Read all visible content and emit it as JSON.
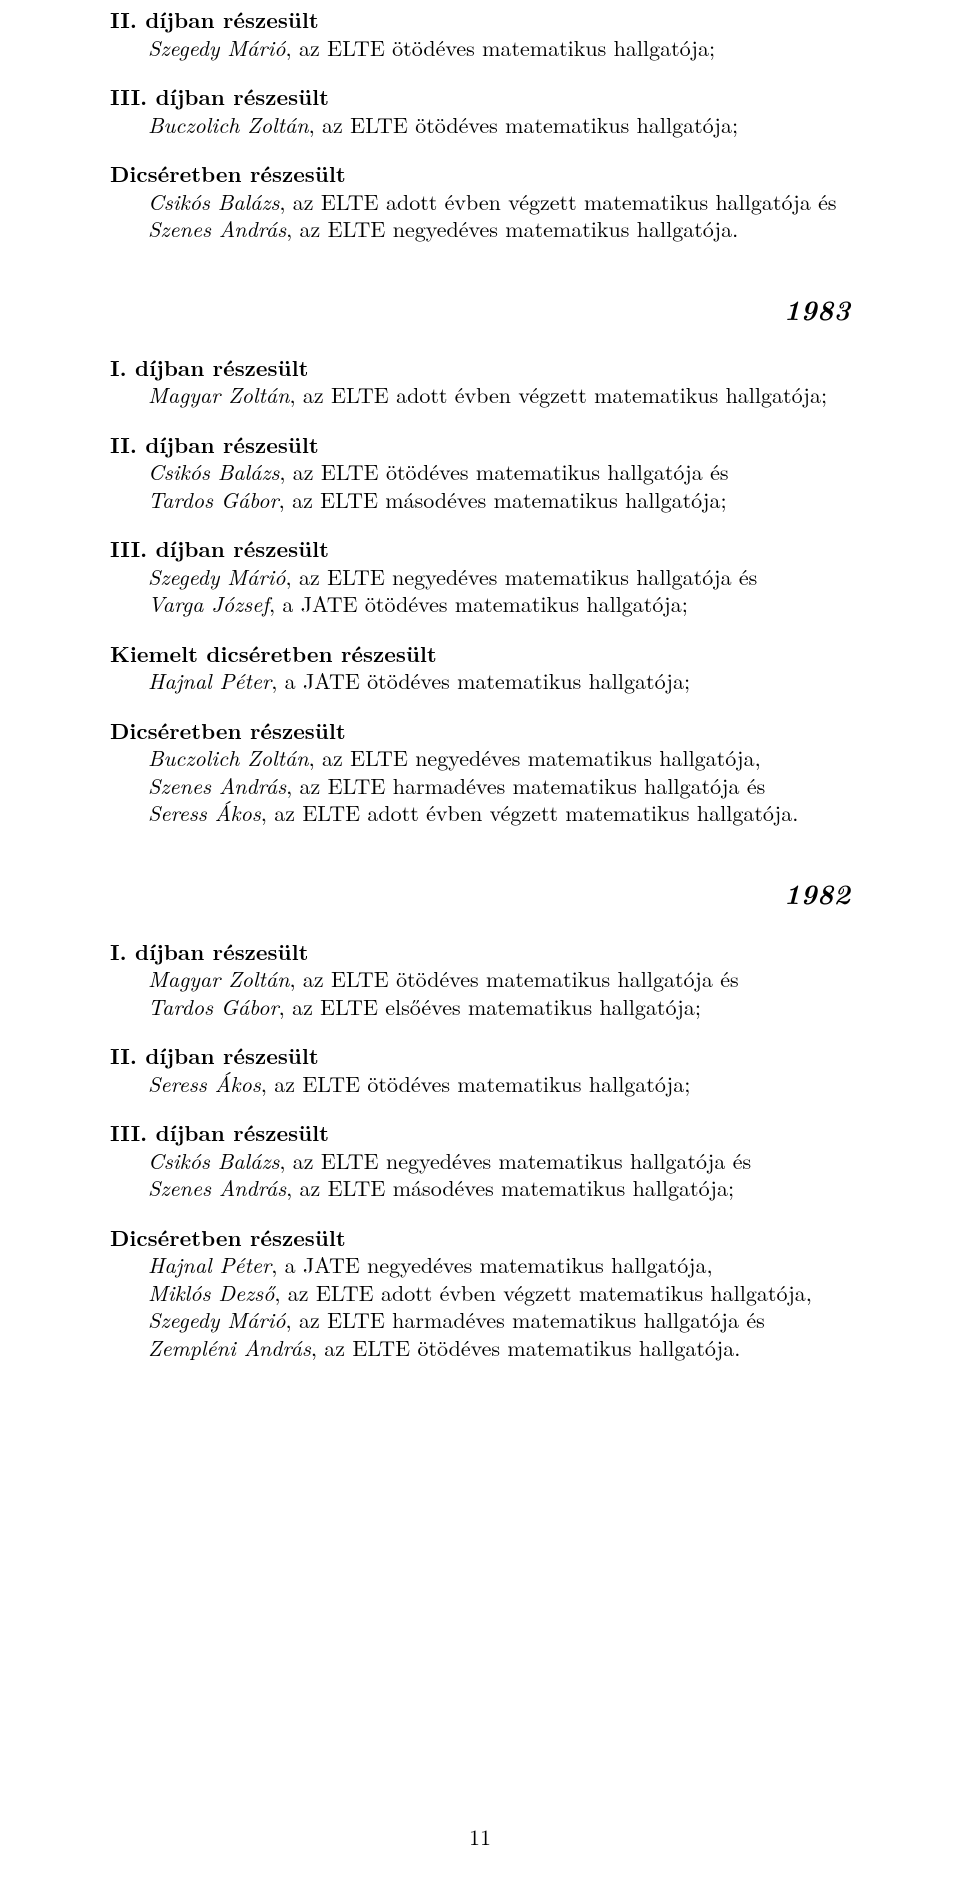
{
  "page_number": "11",
  "blocks": [
    {
      "title": "II. díjban részesült",
      "lines": [
        [
          {
            "t": "Szegedy Márió",
            "i": true
          },
          {
            "t": ", az ELTE ötödéves matematikus hallgatója;",
            "i": false
          }
        ]
      ]
    },
    {
      "title": "III. díjban részesült",
      "lines": [
        [
          {
            "t": "Buczolich Zoltán",
            "i": true
          },
          {
            "t": ", az ELTE ötödéves matematikus hallgatója;",
            "i": false
          }
        ]
      ]
    },
    {
      "title": "Dicséretben részesült",
      "lines": [
        [
          {
            "t": "Csikós Balázs",
            "i": true
          },
          {
            "t": ", az ELTE adott évben végzett matematikus hallgatója és",
            "i": false
          }
        ],
        [
          {
            "t": "Szenes András",
            "i": true
          },
          {
            "t": ", az ELTE negyedéves matematikus hallgatója.",
            "i": false
          }
        ]
      ]
    },
    {
      "year": "1983"
    },
    {
      "title": "I. díjban részesült",
      "lines": [
        [
          {
            "t": "Magyar Zoltán",
            "i": true
          },
          {
            "t": ", az ELTE adott évben végzett matematikus hallgatója;",
            "i": false
          }
        ]
      ]
    },
    {
      "title": "II. díjban részesült",
      "lines": [
        [
          {
            "t": "Csikós Balázs",
            "i": true
          },
          {
            "t": ", az ELTE ötödéves matematikus hallgatója és",
            "i": false
          }
        ],
        [
          {
            "t": "Tardos Gábor",
            "i": true
          },
          {
            "t": ", az ELTE másodéves matematikus hallgatója;",
            "i": false
          }
        ]
      ]
    },
    {
      "title": "III. díjban részesült",
      "lines": [
        [
          {
            "t": "Szegedy Márió",
            "i": true
          },
          {
            "t": ", az ELTE negyedéves matematikus hallgatója és",
            "i": false
          }
        ],
        [
          {
            "t": "Varga József",
            "i": true
          },
          {
            "t": ", a JATE ötödéves matematikus hallgatója;",
            "i": false
          }
        ]
      ]
    },
    {
      "title": "Kiemelt dicséretben részesült",
      "lines": [
        [
          {
            "t": "Hajnal Péter",
            "i": true
          },
          {
            "t": ", a JATE ötödéves matematikus hallgatója;",
            "i": false
          }
        ]
      ]
    },
    {
      "title": "Dicséretben részesült",
      "lines": [
        [
          {
            "t": "Buczolich Zoltán",
            "i": true
          },
          {
            "t": ", az ELTE negyedéves matematikus hallgatója,",
            "i": false
          }
        ],
        [
          {
            "t": "Szenes András",
            "i": true
          },
          {
            "t": ", az ELTE harmadéves matematikus hallgatója és",
            "i": false
          }
        ],
        [
          {
            "t": "Seress Ákos",
            "i": true
          },
          {
            "t": ", az ELTE adott évben végzett matematikus hallgatója.",
            "i": false
          }
        ]
      ]
    },
    {
      "year": "1982"
    },
    {
      "title": "I. díjban részesült",
      "lines": [
        [
          {
            "t": "Magyar Zoltán",
            "i": true
          },
          {
            "t": ", az ELTE ötödéves matematikus hallgatója és",
            "i": false
          }
        ],
        [
          {
            "t": "Tardos Gábor",
            "i": true
          },
          {
            "t": ", az ELTE elsőéves matematikus hallgatója;",
            "i": false
          }
        ]
      ]
    },
    {
      "title": "II. díjban részesült",
      "lines": [
        [
          {
            "t": "Seress Ákos",
            "i": true
          },
          {
            "t": ", az ELTE ötödéves matematikus hallgatója;",
            "i": false
          }
        ]
      ]
    },
    {
      "title": "III. díjban részesült",
      "lines": [
        [
          {
            "t": "Csikós Balázs",
            "i": true
          },
          {
            "t": ", az ELTE negyedéves matematikus hallgatója és",
            "i": false
          }
        ],
        [
          {
            "t": "Szenes András",
            "i": true
          },
          {
            "t": ", az ELTE másodéves matematikus hallgatója;",
            "i": false
          }
        ]
      ]
    },
    {
      "title": "Dicséretben részesült",
      "lines": [
        [
          {
            "t": "Hajnal Péter",
            "i": true
          },
          {
            "t": ", a JATE negyedéves matematikus hallgatója,",
            "i": false
          }
        ],
        [
          {
            "t": "Miklós Dezső",
            "i": true
          },
          {
            "t": ", az ELTE adott évben végzett matematikus hallgatója,",
            "i": false
          }
        ],
        [
          {
            "t": "Szegedy Márió",
            "i": true
          },
          {
            "t": ", az ELTE harmadéves matematikus hallgatója és",
            "i": false
          }
        ],
        [
          {
            "t": "Zempléni András",
            "i": true
          },
          {
            "t": ", az ELTE ötödéves matematikus hallgatója.",
            "i": false
          }
        ]
      ]
    }
  ]
}
